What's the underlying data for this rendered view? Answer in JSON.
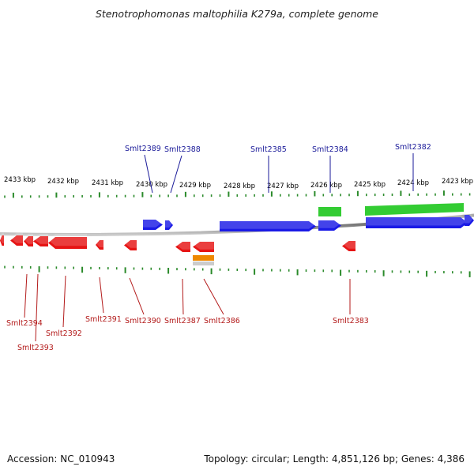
{
  "title": "Stenotrophomonas maltophilia K279a, complete genome",
  "footer": {
    "accession": "Accession: NC_010943",
    "topology": "Topology: circular; Length: 4,851,126 bp; Genes: 4,386"
  },
  "colors": {
    "forward_gene": "#1a1ae6",
    "reverse_gene": "#e61414",
    "feature_green": "#33cc33",
    "feature_orange": "#ee8800",
    "forward_label": "#1a1a99",
    "reverse_label": "#b31a1a",
    "ticks": "#2a8a2a",
    "backbone": "#888888"
  },
  "kbp_ticks": [
    "2433 kbp",
    "2432 kbp",
    "2431 kbp",
    "2430 kbp",
    "2429 kbp",
    "2428 kbp",
    "2427 kbp",
    "2426 kbp",
    "2425 kbp",
    "2424 kbp",
    "2423 kbp"
  ],
  "forward_labels": [
    "Smlt2389",
    "Smlt2388",
    "Smlt2385",
    "Smlt2384",
    "Smlt2382"
  ],
  "reverse_labels": [
    "Smlt2394",
    "Smlt2393",
    "Smlt2392",
    "Smlt2391",
    "Smlt2390",
    "Smlt2387",
    "Smlt2386",
    "Smlt2383"
  ]
}
